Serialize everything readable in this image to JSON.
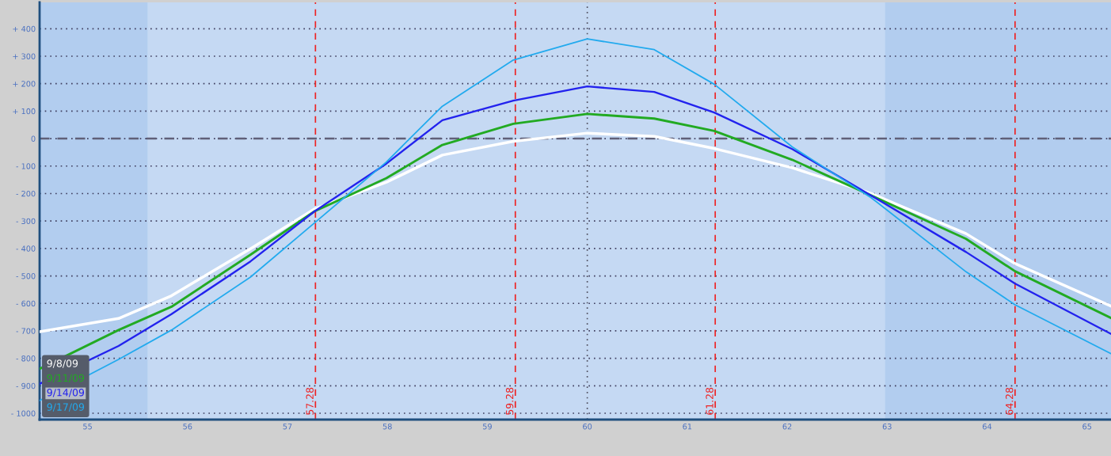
{
  "chart_data": {
    "type": "line",
    "x": [
      54.52,
      55.31,
      55.84,
      56.63,
      57.27,
      57.99,
      58.55,
      59.26,
      60.0,
      60.67,
      61.27,
      62.05,
      62.84,
      63.79,
      64.28,
      65.24
    ],
    "series": [
      {
        "name": "9/8/09",
        "color": "#ffffff",
        "values": [
          -703,
          -655,
          -572,
          -401,
          -256,
          -159,
          -60,
          -10,
          20,
          8,
          -36,
          -106,
          -200,
          -346,
          -455,
          -610
        ]
      },
      {
        "name": "9/11/09",
        "color": "#22aa22",
        "values": [
          -838,
          -697,
          -612,
          -423,
          -265,
          -144,
          -23,
          54,
          90,
          73,
          28,
          -77,
          -207,
          -365,
          -483,
          -653
        ]
      },
      {
        "name": "9/14/09",
        "color": "#2222ee",
        "values": [
          -893,
          -755,
          -639,
          -447,
          -265,
          -91,
          67,
          138,
          190,
          170,
          95,
          -38,
          -207,
          -413,
          -528,
          -711
        ]
      },
      {
        "name": "9/17/09",
        "color": "#22aaee",
        "values": [
          -954,
          -804,
          -697,
          -504,
          -307,
          -85,
          118,
          286,
          363,
          324,
          198,
          -30,
          -215,
          -485,
          -605,
          -783
        ]
      }
    ],
    "xlim": [
      54.52,
      65.24
    ],
    "xticks": [
      55,
      56,
      57,
      58,
      59,
      60,
      61,
      62,
      63,
      64,
      65
    ],
    "ylim": [
      -1023,
      496
    ],
    "yticks": [
      {
        "value": -1000,
        "label": "- 1000"
      },
      {
        "value": -900,
        "label": "- 900"
      },
      {
        "value": -800,
        "label": "- 800"
      },
      {
        "value": -700,
        "label": "- 700"
      },
      {
        "value": -600,
        "label": "- 600"
      },
      {
        "value": -500,
        "label": "- 500"
      },
      {
        "value": -400,
        "label": "- 400"
      },
      {
        "value": -300,
        "label": "- 300"
      },
      {
        "value": -200,
        "label": "- 200"
      },
      {
        "value": -100,
        "label": "- 100"
      },
      0,
      {
        "value": 100,
        "label": "+ 100"
      },
      {
        "value": 200,
        "label": "+ 200"
      },
      {
        "value": 300,
        "label": "+ 300"
      },
      {
        "value": 400,
        "label": "+ 400"
      }
    ],
    "ref_lines": [
      {
        "axis": "x",
        "value": 57.28,
        "label": "57.28",
        "color": "#ee2222",
        "line_style": "dashed"
      },
      {
        "axis": "x",
        "value": 59.28,
        "label": "59.28",
        "color": "#ee2222",
        "line_style": "dashed"
      },
      {
        "axis": "x",
        "value": 61.28,
        "label": "61.28",
        "color": "#ee2222",
        "line_style": "dashed"
      },
      {
        "axis": "x",
        "value": 64.28,
        "label": "64.28",
        "color": "#ee2222",
        "line_style": "dashed"
      },
      {
        "axis": "x",
        "value": 60,
        "color": "#505060",
        "line_style": "dotted"
      },
      {
        "axis": "y",
        "value": 0,
        "color": "#606078",
        "line_style": "dashed"
      }
    ],
    "bands": [
      {
        "axis": "x",
        "from": 54.52,
        "to": 55.6,
        "color": "#b2cdef"
      },
      {
        "axis": "x",
        "from": 62.98,
        "to": 65.24,
        "color": "#b2cdef"
      }
    ],
    "grid": "y",
    "legend": "bottom left",
    "marker": "none",
    "line_style": "solid"
  }
}
